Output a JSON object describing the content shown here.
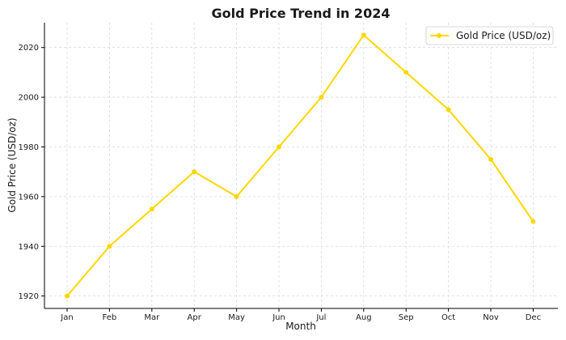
{
  "chart_data": {
    "type": "line",
    "title": "Gold Price Trend in 2024",
    "xlabel": "Month",
    "ylabel": "Gold Price (USD/oz)",
    "categories": [
      "Jan",
      "Feb",
      "Mar",
      "Apr",
      "May",
      "Jun",
      "Jul",
      "Aug",
      "Sep",
      "Oct",
      "Nov",
      "Dec"
    ],
    "series": [
      {
        "name": "Gold Price (USD/oz)",
        "values": [
          1920,
          1940,
          1955,
          1970,
          1960,
          1980,
          2000,
          2025,
          2010,
          1995,
          1975,
          1950
        ],
        "color": "#FFD700",
        "marker": "circle"
      }
    ],
    "ylim": [
      1915,
      2030
    ],
    "yticks": [
      1920,
      1940,
      1960,
      1980,
      2000,
      2020
    ],
    "grid": true,
    "legend_position": "top-right"
  }
}
